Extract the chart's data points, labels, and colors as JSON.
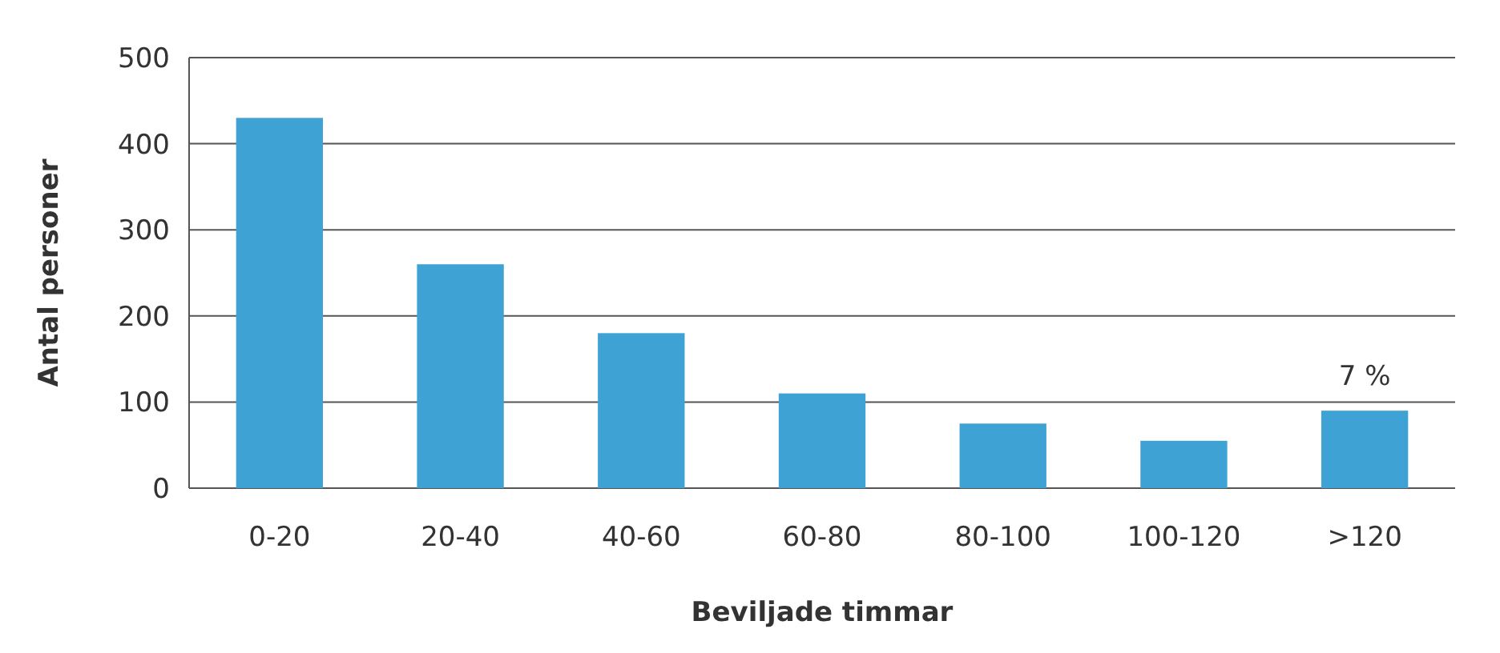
{
  "chart_data": {
    "type": "bar",
    "xlabel": "Beviljade timmar",
    "ylabel": "Antal personer",
    "categories": [
      "0-20",
      "20-40",
      "40-60",
      "60-80",
      "80-100",
      "100-120",
      ">120"
    ],
    "values": [
      430,
      260,
      180,
      110,
      75,
      55,
      90
    ],
    "color": "#3ea2d4",
    "ylim": [
      0,
      500
    ],
    "yticks": [
      0,
      100,
      200,
      300,
      400,
      500
    ],
    "grid": "y",
    "annotations": [
      {
        "text": "7 %",
        "x": ">120",
        "y": 90
      }
    ]
  }
}
